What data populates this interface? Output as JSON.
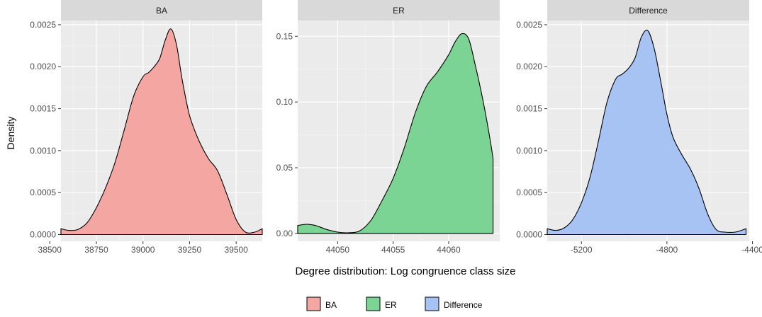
{
  "chart_data": {
    "type": "area",
    "xlabel": "Degree distribution: Log congruence class size",
    "ylabel": "Density",
    "legend": {
      "position": "bottom",
      "items": [
        {
          "label": "BA",
          "color": "#F4A7A2"
        },
        {
          "label": "ER",
          "color": "#7CD494"
        },
        {
          "label": "Difference",
          "color": "#A7C3F4"
        }
      ]
    },
    "grid": true,
    "panels": [
      {
        "strip": "BA",
        "fill": "#F4A7A2",
        "xlim": [
          38560,
          39640
        ],
        "ylim": [
          -8e-05,
          0.00255
        ],
        "xticks": [
          38500,
          38750,
          39000,
          39250,
          39500
        ],
        "xtick_labels": [
          "38500",
          "38750",
          "39000",
          "39250",
          "39500"
        ],
        "yticks": [
          0.0,
          0.0005,
          0.001,
          0.0015,
          0.002,
          0.0025
        ],
        "ytick_labels": [
          "0.0000",
          "0.0005",
          "0.0010",
          "0.0015",
          "0.0020",
          "0.0025"
        ],
        "x": [
          38560,
          38600,
          38650,
          38700,
          38750,
          38800,
          38850,
          38900,
          38950,
          39000,
          39030,
          39060,
          39090,
          39120,
          39150,
          39180,
          39210,
          39250,
          39300,
          39350,
          39400,
          39450,
          39500,
          39550,
          39600,
          39640
        ],
        "y": [
          7e-05,
          5e-05,
          6e-05,
          0.00014,
          0.00032,
          0.00056,
          0.00086,
          0.00125,
          0.00165,
          0.00188,
          0.00193,
          0.002,
          0.0021,
          0.00232,
          0.00245,
          0.00226,
          0.00185,
          0.00142,
          0.00112,
          0.00091,
          0.00076,
          0.00048,
          0.00018,
          3e-05,
          3e-05,
          7e-05
        ]
      },
      {
        "strip": "ER",
        "fill": "#7CD494",
        "xlim": [
          44046.4,
          44064.6
        ],
        "ylim": [
          -0.006,
          0.162
        ],
        "xticks": [
          44050,
          44055,
          44060
        ],
        "xtick_labels": [
          "44050",
          "44055",
          "44060"
        ],
        "yticks": [
          0.0,
          0.05,
          0.1,
          0.15
        ],
        "ytick_labels": [
          "0.00",
          "0.05",
          "0.10",
          "0.15"
        ],
        "x": [
          44046.4,
          44047.2,
          44048,
          44049,
          44050,
          44051,
          44052,
          44053,
          44054,
          44055,
          44056,
          44057,
          44058,
          44059,
          44060,
          44060.6,
          44061.2,
          44061.8,
          44062.4,
          44063,
          44063.6,
          44064
        ],
        "y": [
          0.006,
          0.007,
          0.006,
          0.003,
          0.001,
          0.0005,
          0.002,
          0.01,
          0.025,
          0.042,
          0.065,
          0.092,
          0.112,
          0.123,
          0.136,
          0.146,
          0.152,
          0.148,
          0.128,
          0.105,
          0.078,
          0.057
        ]
      },
      {
        "strip": "Difference",
        "fill": "#A7C3F4",
        "xlim": [
          -5360,
          -4415
        ],
        "ylim": [
          -8e-05,
          0.00255
        ],
        "xticks": [
          -5200,
          -4800,
          -4400
        ],
        "xtick_labels": [
          "-5200",
          "-4800",
          "-4400"
        ],
        "yticks": [
          0.0,
          0.0005,
          0.001,
          0.0015,
          0.002,
          0.0025
        ],
        "ytick_labels": [
          "0.0000",
          "0.0005",
          "0.0010",
          "0.0015",
          "0.0020",
          "0.0025"
        ],
        "x": [
          -5360,
          -5320,
          -5280,
          -5240,
          -5200,
          -5160,
          -5120,
          -5080,
          -5040,
          -5010,
          -4980,
          -4950,
          -4920,
          -4890,
          -4860,
          -4830,
          -4800,
          -4770,
          -4730,
          -4690,
          -4650,
          -4610,
          -4570,
          -4530,
          -4480,
          -4430
        ],
        "y": [
          7e-05,
          5e-05,
          8e-05,
          0.00018,
          0.00038,
          0.00068,
          0.00112,
          0.00158,
          0.00185,
          0.00191,
          0.00198,
          0.0021,
          0.00235,
          0.00243,
          0.00222,
          0.00184,
          0.00143,
          0.00115,
          0.00095,
          0.00078,
          0.00055,
          0.00025,
          6e-05,
          3e-05,
          3e-05,
          7e-05
        ]
      }
    ]
  }
}
